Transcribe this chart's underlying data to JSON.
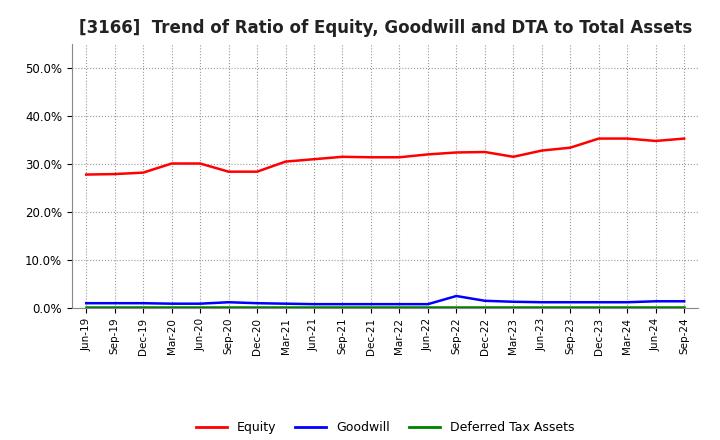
{
  "title": "[3166]  Trend of Ratio of Equity, Goodwill and DTA to Total Assets",
  "x_labels": [
    "Jun-19",
    "Sep-19",
    "Dec-19",
    "Mar-20",
    "Jun-20",
    "Sep-20",
    "Dec-20",
    "Mar-21",
    "Jun-21",
    "Sep-21",
    "Dec-21",
    "Mar-22",
    "Jun-22",
    "Sep-22",
    "Dec-22",
    "Mar-23",
    "Jun-23",
    "Sep-23",
    "Dec-23",
    "Mar-24",
    "Jun-24",
    "Sep-24"
  ],
  "equity": [
    0.278,
    0.279,
    0.282,
    0.301,
    0.301,
    0.284,
    0.284,
    0.305,
    0.31,
    0.315,
    0.314,
    0.314,
    0.32,
    0.324,
    0.325,
    0.315,
    0.328,
    0.334,
    0.353,
    0.353,
    0.348,
    0.353
  ],
  "goodwill": [
    0.01,
    0.01,
    0.01,
    0.009,
    0.009,
    0.012,
    0.01,
    0.009,
    0.008,
    0.008,
    0.008,
    0.008,
    0.008,
    0.025,
    0.015,
    0.013,
    0.012,
    0.012,
    0.012,
    0.012,
    0.014,
    0.014
  ],
  "dta": [
    0.002,
    0.002,
    0.002,
    0.002,
    0.002,
    0.002,
    0.002,
    0.002,
    0.002,
    0.002,
    0.002,
    0.002,
    0.002,
    0.002,
    0.002,
    0.002,
    0.002,
    0.002,
    0.002,
    0.002,
    0.002,
    0.002
  ],
  "equity_color": "#FF0000",
  "goodwill_color": "#0000FF",
  "dta_color": "#008000",
  "ylim": [
    0.0,
    0.55
  ],
  "yticks": [
    0.0,
    0.1,
    0.2,
    0.3,
    0.4,
    0.5
  ],
  "background_color": "#FFFFFF",
  "grid_color": "#999999",
  "title_fontsize": 12,
  "legend_labels": [
    "Equity",
    "Goodwill",
    "Deferred Tax Assets"
  ]
}
